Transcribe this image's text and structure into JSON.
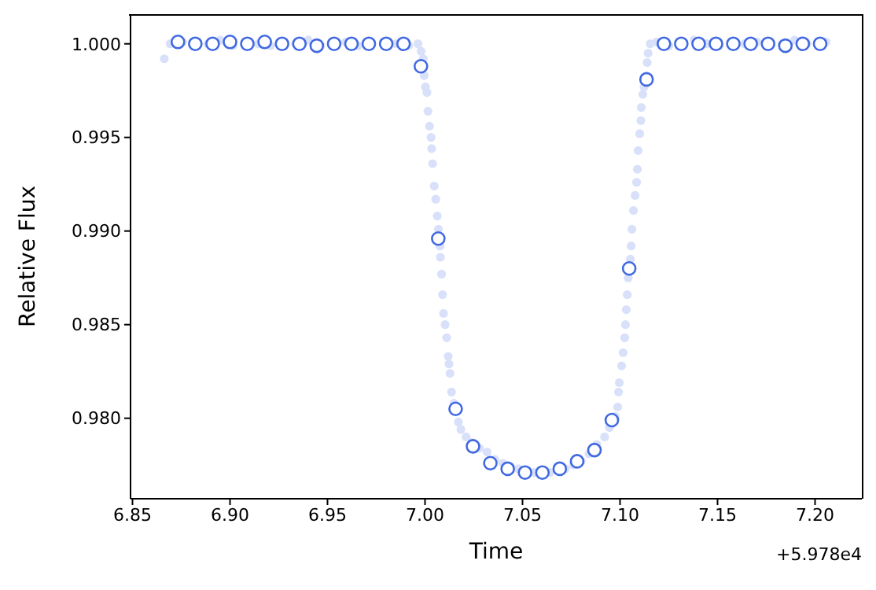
{
  "chart_data": {
    "type": "scatter",
    "xlabel": "Time",
    "ylabel": "Relative Flux",
    "annotations": [
      "+5.978e4"
    ],
    "xlim": [
      6.849,
      7.224
    ],
    "ylim": [
      0.9757,
      1.0015
    ],
    "xticks": [
      6.85,
      {
        "value": 6.9,
        "label": "6.90"
      },
      6.95,
      {
        "value": 7.0,
        "label": "7.00"
      },
      7.05,
      {
        "value": 7.1,
        "label": "7.10"
      },
      7.15,
      {
        "value": 7.2,
        "label": "7.20"
      }
    ],
    "yticks": [
      {
        "value": 0.98,
        "label": "0.980"
      },
      0.985,
      {
        "value": 0.99,
        "label": "0.990"
      },
      0.995,
      {
        "value": 1.0,
        "label": "1.000"
      }
    ],
    "grid": false,
    "legend": false,
    "marker": "circle",
    "series": [
      {
        "color": "#d9e1fa",
        "x": [
          6.8663,
          6.8693,
          6.8757,
          6.8886,
          6.8951,
          6.9015,
          6.9144,
          6.9208,
          6.9337,
          6.9401,
          6.9465,
          6.9594,
          6.9658,
          6.9787,
          6.9852,
          6.9916,
          6.9964,
          6.998,
          6.9991,
          6.9996,
          7.0002,
          7.001,
          7.0015,
          7.0023,
          7.0031,
          7.0034,
          7.0039,
          7.0047,
          7.0055,
          7.0063,
          7.0069,
          7.0077,
          7.0079,
          7.0085,
          7.009,
          7.0095,
          7.0103,
          7.0111,
          7.0119,
          7.0123,
          7.0128,
          7.0136,
          7.0149,
          7.0171,
          7.0184,
          7.0211,
          7.0238,
          7.0278,
          7.0318,
          7.0358,
          7.0399,
          7.0439,
          7.0479,
          7.056,
          7.064,
          7.072,
          7.0761,
          7.0801,
          7.0841,
          7.0881,
          7.0921,
          7.0946,
          7.0975,
          7.0988,
          7.0992,
          7.0996,
          7.1008,
          7.1016,
          7.1024,
          7.1028,
          7.1032,
          7.1037,
          7.1042,
          7.1053,
          7.1057,
          7.1061,
          7.1069,
          7.1077,
          7.1085,
          7.1089,
          7.1093,
          7.1101,
          7.1107,
          7.1109,
          7.1117,
          7.1123,
          7.1139,
          7.1144,
          7.1155,
          7.1187,
          7.1251,
          7.138,
          7.1444,
          7.1509,
          7.1638,
          7.1702,
          7.1831,
          7.1895,
          7.1959,
          7.2056
        ],
        "values": [
          0.9992,
          1.0,
          1.0001,
          1.0,
          1.0002,
          0.9999,
          1.0,
          0.9999,
          1.0,
          1.0002,
          0.9999,
          1.0001,
          0.9999,
          1.0001,
          1.0,
          0.9999,
          1.0,
          0.9996,
          0.9992,
          0.9983,
          0.9977,
          0.9974,
          0.9964,
          0.9956,
          0.995,
          0.9944,
          0.9936,
          0.9924,
          0.9917,
          0.9908,
          0.9901,
          0.9892,
          0.9886,
          0.9877,
          0.9866,
          0.9856,
          0.985,
          0.9843,
          0.9833,
          0.9829,
          0.9824,
          0.9814,
          0.9808,
          0.9798,
          0.9794,
          0.979,
          0.9787,
          0.9784,
          0.9782,
          0.9778,
          0.9776,
          0.9774,
          0.9773,
          0.9771,
          0.9771,
          0.9773,
          0.9775,
          0.9777,
          0.9781,
          0.9786,
          0.979,
          0.9795,
          0.9801,
          0.9806,
          0.9814,
          0.9819,
          0.9828,
          0.9835,
          0.9843,
          0.985,
          0.9858,
          0.9866,
          0.9875,
          0.9885,
          0.9892,
          0.9901,
          0.9911,
          0.9919,
          0.9926,
          0.9933,
          0.9943,
          0.9952,
          0.9959,
          0.9966,
          0.9973,
          0.9977,
          0.999,
          0.9995,
          1.0,
          1.0001,
          0.9999,
          1.0002,
          1.0,
          0.9999,
          1.0,
          1.0001,
          1.0,
          1.0002,
          1.0,
          1.0001
        ]
      },
      {
        "color": "#4169e1",
        "x": [
          6.8733,
          6.8822,
          6.8911,
          6.9,
          6.9089,
          6.9178,
          6.9267,
          6.9356,
          6.9445,
          6.9534,
          6.9623,
          6.9712,
          6.9801,
          6.989,
          6.9979,
          7.0068,
          7.0157,
          7.0246,
          7.0335,
          7.0424,
          7.0513,
          7.0602,
          7.0691,
          7.078,
          7.0869,
          7.0958,
          7.1047,
          7.1136,
          7.1225,
          7.1314,
          7.1403,
          7.1492,
          7.1581,
          7.167,
          7.1759,
          7.1848,
          7.1937,
          7.2026
        ],
        "values": [
          1.0001,
          1.0,
          1.0,
          1.0001,
          1.0,
          1.0001,
          1.0,
          1.0,
          0.9999,
          1.0,
          1.0,
          1.0,
          1.0,
          1.0,
          0.9988,
          0.9896,
          0.9805,
          0.9785,
          0.9776,
          0.9773,
          0.9771,
          0.9771,
          0.9773,
          0.9777,
          0.9783,
          0.9799,
          0.988,
          0.9981,
          1.0,
          1.0,
          1.0,
          1.0,
          1.0,
          1.0,
          1.0,
          0.9999,
          1.0,
          1.0
        ]
      }
    ]
  }
}
